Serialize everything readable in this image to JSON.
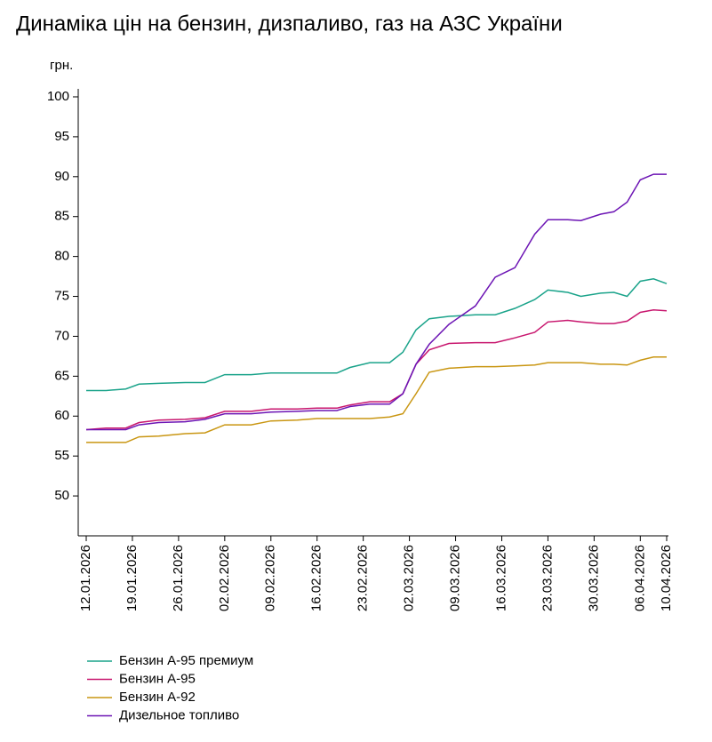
{
  "chart_data": {
    "type": "line",
    "title": "Динаміка цін на бензин, дизпаливо, газ на АЗС України",
    "y_label": "грн.",
    "x": [
      "12.01.2026",
      "15.01.2026",
      "18.01.2026",
      "20.01.2026",
      "23.01.2026",
      "27.01.2026",
      "30.01.2026",
      "02.02.2026",
      "06.02.2026",
      "09.02.2026",
      "13.02.2026",
      "16.02.2026",
      "19.02.2026",
      "21.02.2026",
      "24.02.2026",
      "27.02.2026",
      "01.03.2026",
      "03.03.2026",
      "05.03.2026",
      "08.03.2026",
      "12.03.2026",
      "15.03.2026",
      "18.03.2026",
      "21.03.2026",
      "23.03.2026",
      "26.03.2026",
      "28.03.2026",
      "31.03.2026",
      "02.04.2026",
      "04.04.2026",
      "06.04.2026",
      "08.04.2026",
      "10.04.2026"
    ],
    "series": [
      {
        "name": "Бензин А-95 премиум",
        "color": "#1aa38a",
        "values": [
          63.2,
          63.2,
          63.4,
          64.0,
          64.1,
          64.2,
          64.2,
          65.2,
          65.2,
          65.4,
          65.4,
          65.4,
          65.4,
          66.1,
          66.7,
          66.7,
          68.0,
          70.8,
          72.2,
          72.5,
          72.7,
          72.7,
          73.5,
          74.6,
          75.8,
          75.5,
          75.0,
          75.4,
          75.5,
          75.0,
          76.9,
          77.2,
          76.6
        ]
      },
      {
        "name": "Бензин А-95",
        "color": "#c8166e",
        "values": [
          58.3,
          58.5,
          58.5,
          59.2,
          59.5,
          59.6,
          59.8,
          60.6,
          60.6,
          60.9,
          60.9,
          61.0,
          61.0,
          61.4,
          61.8,
          61.8,
          62.8,
          66.5,
          68.3,
          69.1,
          69.2,
          69.2,
          69.8,
          70.5,
          71.8,
          72.0,
          71.8,
          71.6,
          71.6,
          71.9,
          73.0,
          73.3,
          73.2
        ]
      },
      {
        "name": "Бензин А-92",
        "color": "#c99612",
        "values": [
          56.7,
          56.7,
          56.7,
          57.4,
          57.5,
          57.8,
          57.9,
          58.9,
          58.9,
          59.4,
          59.5,
          59.7,
          59.7,
          59.7,
          59.7,
          59.9,
          60.3,
          62.8,
          65.5,
          66.0,
          66.2,
          66.2,
          66.3,
          66.4,
          66.7,
          66.7,
          66.7,
          66.5,
          66.5,
          66.4,
          67.0,
          67.4,
          67.4
        ]
      },
      {
        "name": "Дизельное топливо",
        "color": "#6c14b4",
        "values": [
          58.3,
          58.3,
          58.3,
          58.9,
          59.2,
          59.3,
          59.6,
          60.3,
          60.3,
          60.5,
          60.6,
          60.7,
          60.7,
          61.2,
          61.5,
          61.5,
          62.8,
          66.5,
          69.0,
          71.5,
          73.8,
          77.4,
          78.6,
          82.8,
          84.6,
          84.6,
          84.5,
          85.3,
          85.6,
          86.8,
          89.6,
          90.3,
          90.3
        ]
      }
    ],
    "xlim": [
      "12.01.2026",
      "10.04.2026"
    ],
    "xticks": [
      "12.01.2026",
      "19.01.2026",
      "26.01.2026",
      "02.02.2026",
      "09.02.2026",
      "16.02.2026",
      "23.02.2026",
      "02.03.2026",
      "09.03.2026",
      "16.03.2026",
      "23.03.2026",
      "30.03.2026",
      "06.04.2026",
      "10.04.2026"
    ],
    "ylim": [
      45,
      101
    ],
    "yticks": [
      50,
      55,
      60,
      65,
      70,
      75,
      80,
      85,
      90,
      95,
      100
    ],
    "grid": false,
    "legend": "bottom-left"
  }
}
